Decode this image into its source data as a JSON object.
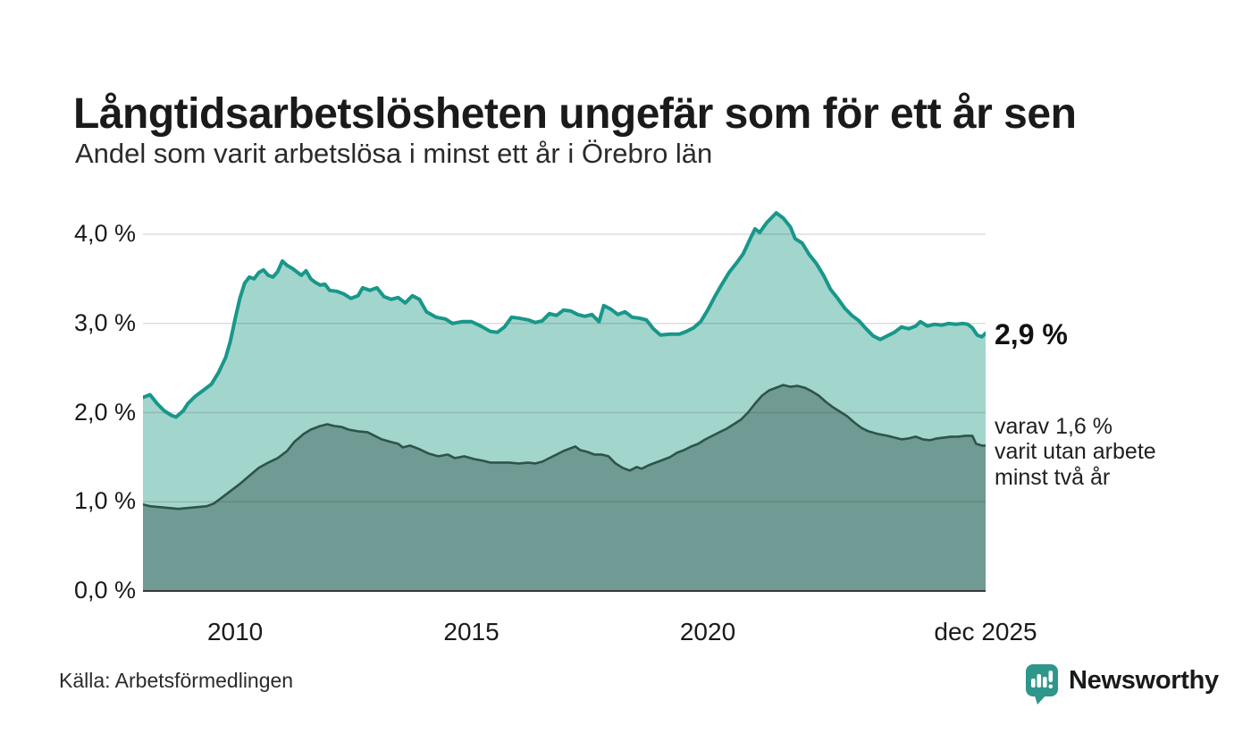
{
  "header": {
    "title": "Långtidsarbetslösheten ungefär som för ett år sen",
    "subtitle": "Andel som varit arbetslösa i minst ett år i Örebro län"
  },
  "footer": {
    "source": "Källa: Arbetsförmedlingen",
    "brand_name": "Newsworthy",
    "brand_color": "#2f968b"
  },
  "chart_data": {
    "type": "area",
    "xlabel": "",
    "ylabel": "",
    "xlim": [
      2008.05,
      2025.88
    ],
    "ylim": [
      0,
      4.0
    ],
    "grid": "horizontal",
    "yticks": [
      {
        "label": "0,0 %",
        "value": 0
      },
      {
        "label": "1,0 %",
        "value": 1
      },
      {
        "label": "2,0 %",
        "value": 2
      },
      {
        "label": "3,0 %",
        "value": 3
      },
      {
        "label": "4,0 %",
        "value": 4
      }
    ],
    "xticks": [
      {
        "label": "2010",
        "year": 2010
      },
      {
        "label": "2015",
        "year": 2015
      },
      {
        "label": "2020",
        "year": 2020
      },
      {
        "label": "dec 2025",
        "year": 2025.88
      }
    ],
    "end_label": "2,9 %",
    "annotation": "varav 1,6 %\nvarit utan arbete\nminst två år",
    "colors": {
      "one_year_line": "#18978a",
      "one_year_fill": "#a2d5cc",
      "two_year_line": "#2d544c",
      "two_year_fill": "#6f9b94",
      "gridline": "#d9d9d9",
      "baseline": "#3a3a3a"
    },
    "series": [
      {
        "name": "arbetslösa minst ett år",
        "end_value_pct": 2.9,
        "points": [
          [
            2008.05,
            2.17
          ],
          [
            2008.2,
            2.2
          ],
          [
            2008.35,
            2.1
          ],
          [
            2008.5,
            2.02
          ],
          [
            2008.65,
            1.97
          ],
          [
            2008.75,
            1.95
          ],
          [
            2008.9,
            2.02
          ],
          [
            2009.0,
            2.1
          ],
          [
            2009.15,
            2.18
          ],
          [
            2009.3,
            2.24
          ],
          [
            2009.5,
            2.32
          ],
          [
            2009.65,
            2.45
          ],
          [
            2009.8,
            2.62
          ],
          [
            2009.9,
            2.8
          ],
          [
            2010.0,
            3.05
          ],
          [
            2010.1,
            3.28
          ],
          [
            2010.2,
            3.45
          ],
          [
            2010.3,
            3.52
          ],
          [
            2010.4,
            3.5
          ],
          [
            2010.5,
            3.57
          ],
          [
            2010.6,
            3.6
          ],
          [
            2010.7,
            3.54
          ],
          [
            2010.8,
            3.52
          ],
          [
            2010.9,
            3.58
          ],
          [
            2011.0,
            3.7
          ],
          [
            2011.1,
            3.65
          ],
          [
            2011.2,
            3.62
          ],
          [
            2011.3,
            3.58
          ],
          [
            2011.4,
            3.54
          ],
          [
            2011.5,
            3.59
          ],
          [
            2011.6,
            3.5
          ],
          [
            2011.7,
            3.46
          ],
          [
            2011.8,
            3.43
          ],
          [
            2011.9,
            3.44
          ],
          [
            2012.0,
            3.37
          ],
          [
            2012.15,
            3.36
          ],
          [
            2012.3,
            3.33
          ],
          [
            2012.45,
            3.28
          ],
          [
            2012.6,
            3.31
          ],
          [
            2012.7,
            3.4
          ],
          [
            2012.85,
            3.37
          ],
          [
            2013.0,
            3.4
          ],
          [
            2013.15,
            3.3
          ],
          [
            2013.3,
            3.27
          ],
          [
            2013.45,
            3.29
          ],
          [
            2013.6,
            3.23
          ],
          [
            2013.75,
            3.31
          ],
          [
            2013.9,
            3.27
          ],
          [
            2014.05,
            3.13
          ],
          [
            2014.25,
            3.07
          ],
          [
            2014.45,
            3.05
          ],
          [
            2014.6,
            3.0
          ],
          [
            2014.8,
            3.02
          ],
          [
            2015.0,
            3.02
          ],
          [
            2015.2,
            2.97
          ],
          [
            2015.4,
            2.91
          ],
          [
            2015.55,
            2.9
          ],
          [
            2015.7,
            2.96
          ],
          [
            2015.85,
            3.07
          ],
          [
            2016.0,
            3.06
          ],
          [
            2016.2,
            3.04
          ],
          [
            2016.35,
            3.01
          ],
          [
            2016.5,
            3.03
          ],
          [
            2016.65,
            3.11
          ],
          [
            2016.8,
            3.09
          ],
          [
            2016.95,
            3.15
          ],
          [
            2017.1,
            3.14
          ],
          [
            2017.25,
            3.1
          ],
          [
            2017.4,
            3.08
          ],
          [
            2017.55,
            3.1
          ],
          [
            2017.7,
            3.02
          ],
          [
            2017.8,
            3.2
          ],
          [
            2017.95,
            3.16
          ],
          [
            2018.1,
            3.1
          ],
          [
            2018.25,
            3.13
          ],
          [
            2018.4,
            3.07
          ],
          [
            2018.55,
            3.06
          ],
          [
            2018.7,
            3.04
          ],
          [
            2018.85,
            2.94
          ],
          [
            2019.0,
            2.87
          ],
          [
            2019.2,
            2.88
          ],
          [
            2019.4,
            2.88
          ],
          [
            2019.55,
            2.91
          ],
          [
            2019.7,
            2.95
          ],
          [
            2019.85,
            3.02
          ],
          [
            2020.0,
            3.15
          ],
          [
            2020.15,
            3.3
          ],
          [
            2020.3,
            3.44
          ],
          [
            2020.45,
            3.57
          ],
          [
            2020.6,
            3.67
          ],
          [
            2020.75,
            3.78
          ],
          [
            2020.9,
            3.95
          ],
          [
            2021.0,
            4.06
          ],
          [
            2021.1,
            4.02
          ],
          [
            2021.25,
            4.13
          ],
          [
            2021.45,
            4.24
          ],
          [
            2021.6,
            4.18
          ],
          [
            2021.75,
            4.08
          ],
          [
            2021.85,
            3.95
          ],
          [
            2022.0,
            3.9
          ],
          [
            2022.15,
            3.77
          ],
          [
            2022.3,
            3.67
          ],
          [
            2022.45,
            3.54
          ],
          [
            2022.6,
            3.38
          ],
          [
            2022.75,
            3.28
          ],
          [
            2022.9,
            3.17
          ],
          [
            2023.05,
            3.09
          ],
          [
            2023.2,
            3.03
          ],
          [
            2023.35,
            2.94
          ],
          [
            2023.5,
            2.86
          ],
          [
            2023.65,
            2.82
          ],
          [
            2023.8,
            2.86
          ],
          [
            2023.95,
            2.9
          ],
          [
            2024.1,
            2.96
          ],
          [
            2024.25,
            2.94
          ],
          [
            2024.4,
            2.97
          ],
          [
            2024.5,
            3.02
          ],
          [
            2024.65,
            2.97
          ],
          [
            2024.8,
            2.99
          ],
          [
            2024.95,
            2.98
          ],
          [
            2025.1,
            3.0
          ],
          [
            2025.25,
            2.99
          ],
          [
            2025.4,
            3.0
          ],
          [
            2025.5,
            2.99
          ],
          [
            2025.6,
            2.95
          ],
          [
            2025.7,
            2.87
          ],
          [
            2025.8,
            2.85
          ],
          [
            2025.88,
            2.89
          ]
        ]
      },
      {
        "name": "varav utan arbete minst två år",
        "end_value_pct": 1.6,
        "points": [
          [
            2008.05,
            0.97
          ],
          [
            2008.2,
            0.95
          ],
          [
            2008.4,
            0.94
          ],
          [
            2008.6,
            0.93
          ],
          [
            2008.8,
            0.92
          ],
          [
            2009.0,
            0.93
          ],
          [
            2009.2,
            0.94
          ],
          [
            2009.4,
            0.95
          ],
          [
            2009.55,
            0.98
          ],
          [
            2009.7,
            1.04
          ],
          [
            2009.9,
            1.12
          ],
          [
            2010.1,
            1.2
          ],
          [
            2010.3,
            1.29
          ],
          [
            2010.5,
            1.38
          ],
          [
            2010.7,
            1.44
          ],
          [
            2010.9,
            1.49
          ],
          [
            2011.1,
            1.57
          ],
          [
            2011.25,
            1.67
          ],
          [
            2011.45,
            1.76
          ],
          [
            2011.6,
            1.81
          ],
          [
            2011.8,
            1.85
          ],
          [
            2011.95,
            1.87
          ],
          [
            2012.1,
            1.85
          ],
          [
            2012.25,
            1.84
          ],
          [
            2012.4,
            1.81
          ],
          [
            2012.6,
            1.79
          ],
          [
            2012.8,
            1.78
          ],
          [
            2012.95,
            1.74
          ],
          [
            2013.1,
            1.7
          ],
          [
            2013.3,
            1.67
          ],
          [
            2013.45,
            1.65
          ],
          [
            2013.55,
            1.61
          ],
          [
            2013.7,
            1.63
          ],
          [
            2013.9,
            1.59
          ],
          [
            2014.1,
            1.54
          ],
          [
            2014.3,
            1.51
          ],
          [
            2014.5,
            1.53
          ],
          [
            2014.65,
            1.49
          ],
          [
            2014.85,
            1.51
          ],
          [
            2015.05,
            1.48
          ],
          [
            2015.25,
            1.46
          ],
          [
            2015.4,
            1.44
          ],
          [
            2015.6,
            1.44
          ],
          [
            2015.8,
            1.44
          ],
          [
            2016.0,
            1.43
          ],
          [
            2016.2,
            1.44
          ],
          [
            2016.35,
            1.43
          ],
          [
            2016.5,
            1.45
          ],
          [
            2016.65,
            1.49
          ],
          [
            2016.8,
            1.53
          ],
          [
            2016.95,
            1.57
          ],
          [
            2017.1,
            1.6
          ],
          [
            2017.2,
            1.62
          ],
          [
            2017.3,
            1.58
          ],
          [
            2017.45,
            1.56
          ],
          [
            2017.6,
            1.53
          ],
          [
            2017.75,
            1.53
          ],
          [
            2017.9,
            1.51
          ],
          [
            2018.05,
            1.43
          ],
          [
            2018.2,
            1.38
          ],
          [
            2018.35,
            1.35
          ],
          [
            2018.5,
            1.39
          ],
          [
            2018.6,
            1.37
          ],
          [
            2018.75,
            1.41
          ],
          [
            2018.9,
            1.44
          ],
          [
            2019.05,
            1.47
          ],
          [
            2019.2,
            1.5
          ],
          [
            2019.35,
            1.55
          ],
          [
            2019.5,
            1.58
          ],
          [
            2019.65,
            1.62
          ],
          [
            2019.8,
            1.65
          ],
          [
            2019.95,
            1.7
          ],
          [
            2020.1,
            1.74
          ],
          [
            2020.25,
            1.78
          ],
          [
            2020.4,
            1.82
          ],
          [
            2020.55,
            1.87
          ],
          [
            2020.7,
            1.92
          ],
          [
            2020.85,
            2.0
          ],
          [
            2021.0,
            2.1
          ],
          [
            2021.15,
            2.19
          ],
          [
            2021.3,
            2.25
          ],
          [
            2021.45,
            2.28
          ],
          [
            2021.6,
            2.31
          ],
          [
            2021.75,
            2.29
          ],
          [
            2021.9,
            2.3
          ],
          [
            2022.05,
            2.28
          ],
          [
            2022.2,
            2.24
          ],
          [
            2022.35,
            2.19
          ],
          [
            2022.5,
            2.12
          ],
          [
            2022.65,
            2.06
          ],
          [
            2022.8,
            2.01
          ],
          [
            2022.95,
            1.96
          ],
          [
            2023.1,
            1.89
          ],
          [
            2023.25,
            1.83
          ],
          [
            2023.4,
            1.79
          ],
          [
            2023.6,
            1.76
          ],
          [
            2023.8,
            1.74
          ],
          [
            2023.95,
            1.72
          ],
          [
            2024.1,
            1.7
          ],
          [
            2024.25,
            1.71
          ],
          [
            2024.4,
            1.73
          ],
          [
            2024.55,
            1.7
          ],
          [
            2024.7,
            1.69
          ],
          [
            2024.85,
            1.71
          ],
          [
            2025.0,
            1.72
          ],
          [
            2025.15,
            1.73
          ],
          [
            2025.3,
            1.73
          ],
          [
            2025.45,
            1.74
          ],
          [
            2025.6,
            1.74
          ],
          [
            2025.68,
            1.65
          ],
          [
            2025.8,
            1.63
          ],
          [
            2025.88,
            1.63
          ]
        ]
      }
    ]
  }
}
